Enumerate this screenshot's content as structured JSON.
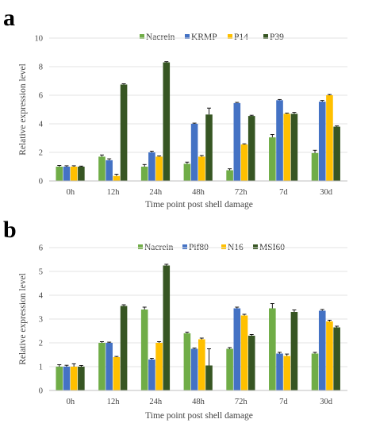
{
  "chart_data": [
    {
      "panel": "a",
      "type": "bar",
      "xlabel": "Time point post shell damage",
      "ylabel": "Relative expression level",
      "ylim": [
        0,
        10
      ],
      "yticks": [
        0,
        2,
        4,
        6,
        8,
        10
      ],
      "categories": [
        "0h",
        "12h",
        "24h",
        "48h",
        "72h",
        "7d",
        "30d"
      ],
      "legend_position": "top",
      "series": [
        {
          "name": "Nacrein",
          "color": "#70ad47",
          "values": [
            1.0,
            1.7,
            1.0,
            1.2,
            0.75,
            3.05,
            1.95
          ],
          "errors": [
            0.08,
            0.12,
            0.15,
            0.12,
            0.1,
            0.2,
            0.2
          ]
        },
        {
          "name": "KRMP",
          "color": "#4472c4",
          "values": [
            1.0,
            1.45,
            2.0,
            4.0,
            5.45,
            5.65,
            5.55
          ],
          "errors": [
            0.06,
            0.1,
            0.08,
            0.05,
            0.05,
            0.05,
            0.08
          ]
        },
        {
          "name": "P14",
          "color": "#ffc000",
          "values": [
            1.0,
            0.35,
            1.7,
            1.7,
            2.55,
            4.7,
            6.0
          ],
          "errors": [
            0.06,
            0.12,
            0.05,
            0.08,
            0.05,
            0.05,
            0.05
          ]
        },
        {
          "name": "P39",
          "color": "#375623",
          "values": [
            1.0,
            6.75,
            8.3,
            4.65,
            4.55,
            4.7,
            3.8
          ],
          "errors": [
            0.04,
            0.05,
            0.05,
            0.45,
            0.05,
            0.1,
            0.05
          ]
        }
      ]
    },
    {
      "panel": "b",
      "type": "bar",
      "xlabel": "Time point post shell damage",
      "ylabel": "Relative expression level",
      "ylim": [
        0,
        6
      ],
      "yticks": [
        0,
        1,
        2,
        3,
        4,
        5,
        6
      ],
      "categories": [
        "0h",
        "12h",
        "24h",
        "48h",
        "72h",
        "7d",
        "30d"
      ],
      "legend_position": "top",
      "series": [
        {
          "name": "Nacrein",
          "color": "#70ad47",
          "values": [
            1.0,
            2.0,
            3.4,
            2.4,
            1.75,
            3.45,
            1.55
          ],
          "errors": [
            0.08,
            0.05,
            0.1,
            0.05,
            0.05,
            0.2,
            0.05
          ]
        },
        {
          "name": "Pif80",
          "color": "#4472c4",
          "values": [
            1.0,
            2.0,
            1.3,
            1.75,
            3.45,
            1.55,
            3.35
          ],
          "errors": [
            0.06,
            0.03,
            0.05,
            0.03,
            0.05,
            0.05,
            0.05
          ]
        },
        {
          "name": "N16",
          "color": "#ffc000",
          "values": [
            1.0,
            1.4,
            2.0,
            2.15,
            3.15,
            1.45,
            2.9
          ],
          "errors": [
            0.12,
            0.03,
            0.05,
            0.05,
            0.05,
            0.08,
            0.05
          ]
        },
        {
          "name": "MSI60",
          "color": "#375623",
          "values": [
            1.0,
            3.55,
            5.25,
            1.05,
            2.3,
            3.3,
            2.65
          ],
          "errors": [
            0.05,
            0.05,
            0.05,
            0.7,
            0.05,
            0.08,
            0.05
          ]
        }
      ]
    }
  ]
}
